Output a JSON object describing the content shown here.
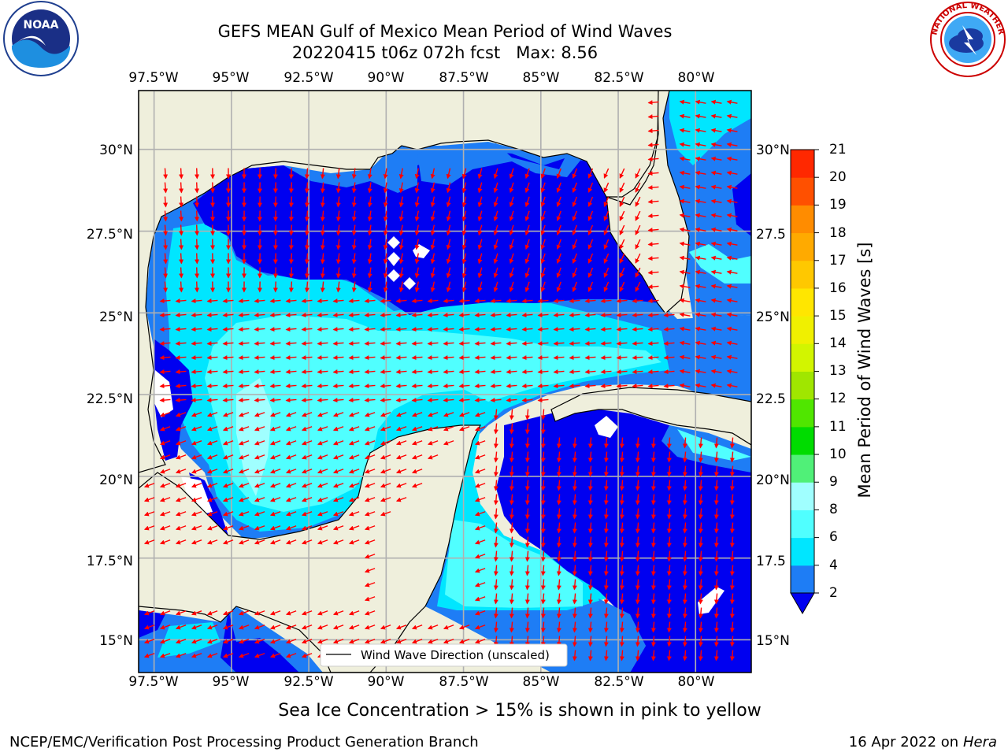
{
  "header": {
    "title_line1": "GEFS MEAN Gulf of Mexico Mean Period of Wind Waves",
    "title_line2": "20220415 t06z 072h fcst   Max: 8.56"
  },
  "logos": {
    "left": "noaa-logo",
    "right": "nws-logo",
    "noaa_text": "NOAA",
    "nws_ring_text": "NATIONAL WEATHER SERVICE"
  },
  "map": {
    "lon_labels": [
      "97.5°W",
      "95°W",
      "92.5°W",
      "90°W",
      "87.5°W",
      "85°W",
      "82.5°W",
      "80°W"
    ],
    "lon_values": [
      -97.5,
      -95,
      -92.5,
      -90,
      -87.5,
      -85,
      -82.5,
      -80
    ],
    "lat_labels_left": [
      "30°N",
      "27.5°N",
      "25°N",
      "22.5°N",
      "20°N",
      "17.5°N",
      "15°N"
    ],
    "lat_labels_right": [
      "30°N",
      "27.5",
      "25°N",
      "22.5",
      "20°N",
      "17.5",
      "15°N"
    ],
    "lat_values": [
      30,
      27.5,
      25,
      22.5,
      20,
      17.5,
      15
    ],
    "lon_range": [
      -98,
      -78.2
    ],
    "lat_range": [
      14,
      31.8
    ],
    "legend_label": "Wind Wave Direction (unscaled)",
    "arrow_color": "#ff0000",
    "land_color": "#efefdc",
    "grid": true
  },
  "colorbar": {
    "label": "Mean Period of Wind Waves [s]",
    "ticks": [
      "21",
      "20",
      "19",
      "18",
      "17",
      "16",
      "15",
      "14",
      "13",
      "12",
      "11",
      "10",
      "9",
      "8",
      "6",
      "4",
      "2"
    ],
    "levels": [
      2,
      4,
      6,
      8,
      9,
      10,
      11,
      12,
      13,
      14,
      15,
      16,
      17,
      18,
      19,
      20,
      21
    ],
    "colors": [
      "#1e7df5",
      "#00e6ff",
      "#50ffff",
      "#a0ffff",
      "#50f078",
      "#00dc00",
      "#50e600",
      "#a0e600",
      "#d2f500",
      "#f0f000",
      "#ffe600",
      "#ffc800",
      "#ffaa00",
      "#ff8c00",
      "#ff5000",
      "#ff2800"
    ],
    "under_color": "#0000f0"
  },
  "footer": {
    "note": "Sea Ice Concentration > 15% is shown in pink to yellow",
    "credit": "NCEP/EMC/Verification Post Processing Product Generation Branch",
    "date": "16 Apr 2022",
    "on": "on",
    "machine": "Hera"
  }
}
